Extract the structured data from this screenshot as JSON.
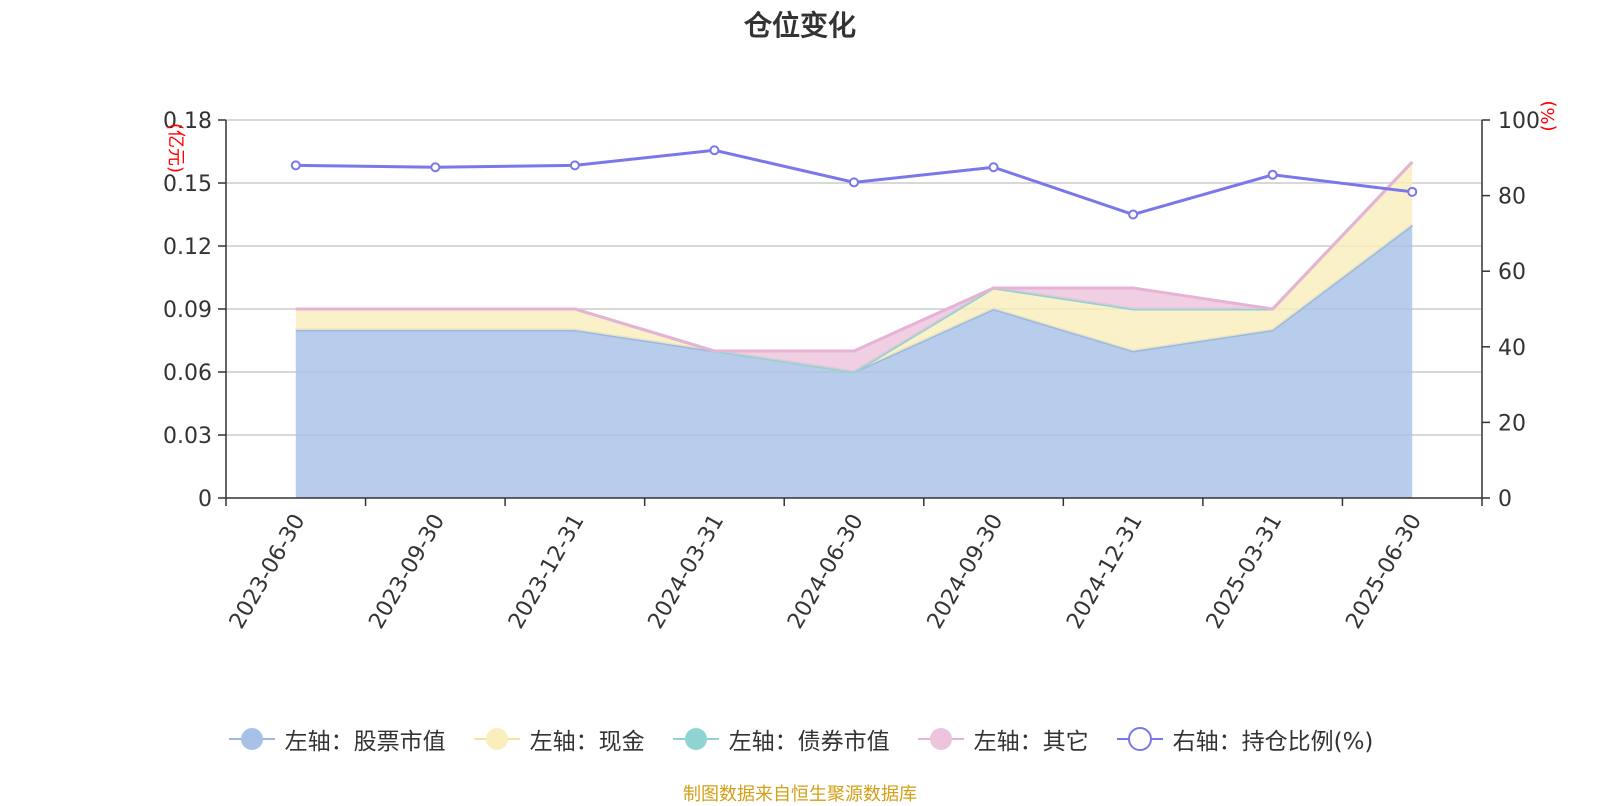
{
  "chart_data": {
    "type": "area",
    "title": "仓位变化",
    "left_axis_unit": "(亿元)",
    "right_axis_unit": "(%)",
    "categories": [
      "2023-06-30",
      "2023-09-30",
      "2023-12-31",
      "2024-03-31",
      "2024-06-30",
      "2024-09-30",
      "2024-12-31",
      "2025-03-31",
      "2025-06-30"
    ],
    "left_ylim": [
      0,
      0.18
    ],
    "left_yticks": [
      "0",
      "0.03",
      "0.06",
      "0.09",
      "0.12",
      "0.15",
      "0.18"
    ],
    "right_ylim": [
      0,
      100
    ],
    "right_yticks": [
      "0",
      "20",
      "40",
      "60",
      "80",
      "100"
    ],
    "stacked": true,
    "grid": true,
    "legend_position": "bottom",
    "series": [
      {
        "name": "左轴：股票市值",
        "axis": "left",
        "type": "area",
        "color": "#a8c1e6",
        "line_color": "#9bb8e0",
        "values": [
          0.08,
          0.08,
          0.08,
          0.07,
          0.06,
          0.09,
          0.07,
          0.08,
          0.13
        ]
      },
      {
        "name": "左轴：现金",
        "axis": "left",
        "type": "area",
        "color": "#faeebd",
        "line_color": "#f6e3a1",
        "values": [
          0.01,
          0.01,
          0.01,
          0.0,
          0.0,
          0.01,
          0.02,
          0.01,
          0.03
        ]
      },
      {
        "name": "左轴：债券市值",
        "axis": "left",
        "type": "area",
        "color": "#8fd3d3",
        "line_color": "#8fd3d3",
        "values": [
          0,
          0,
          0,
          0,
          0,
          0,
          0,
          0,
          0
        ]
      },
      {
        "name": "左轴：其它",
        "axis": "left",
        "type": "area",
        "color": "#edc4dd",
        "line_color": "#e6b3d6",
        "values": [
          0.0,
          0.0,
          0.0,
          0.0,
          0.01,
          0.0,
          0.01,
          0.0,
          0.0
        ]
      },
      {
        "name": "右轴：持仓比例(%)",
        "axis": "right",
        "type": "line",
        "color": "#7878ea",
        "values": [
          88,
          87.5,
          88,
          92,
          83.5,
          87.5,
          75,
          85.5,
          81
        ]
      }
    ]
  },
  "source_note": "制图数据来自恒生聚源数据库"
}
